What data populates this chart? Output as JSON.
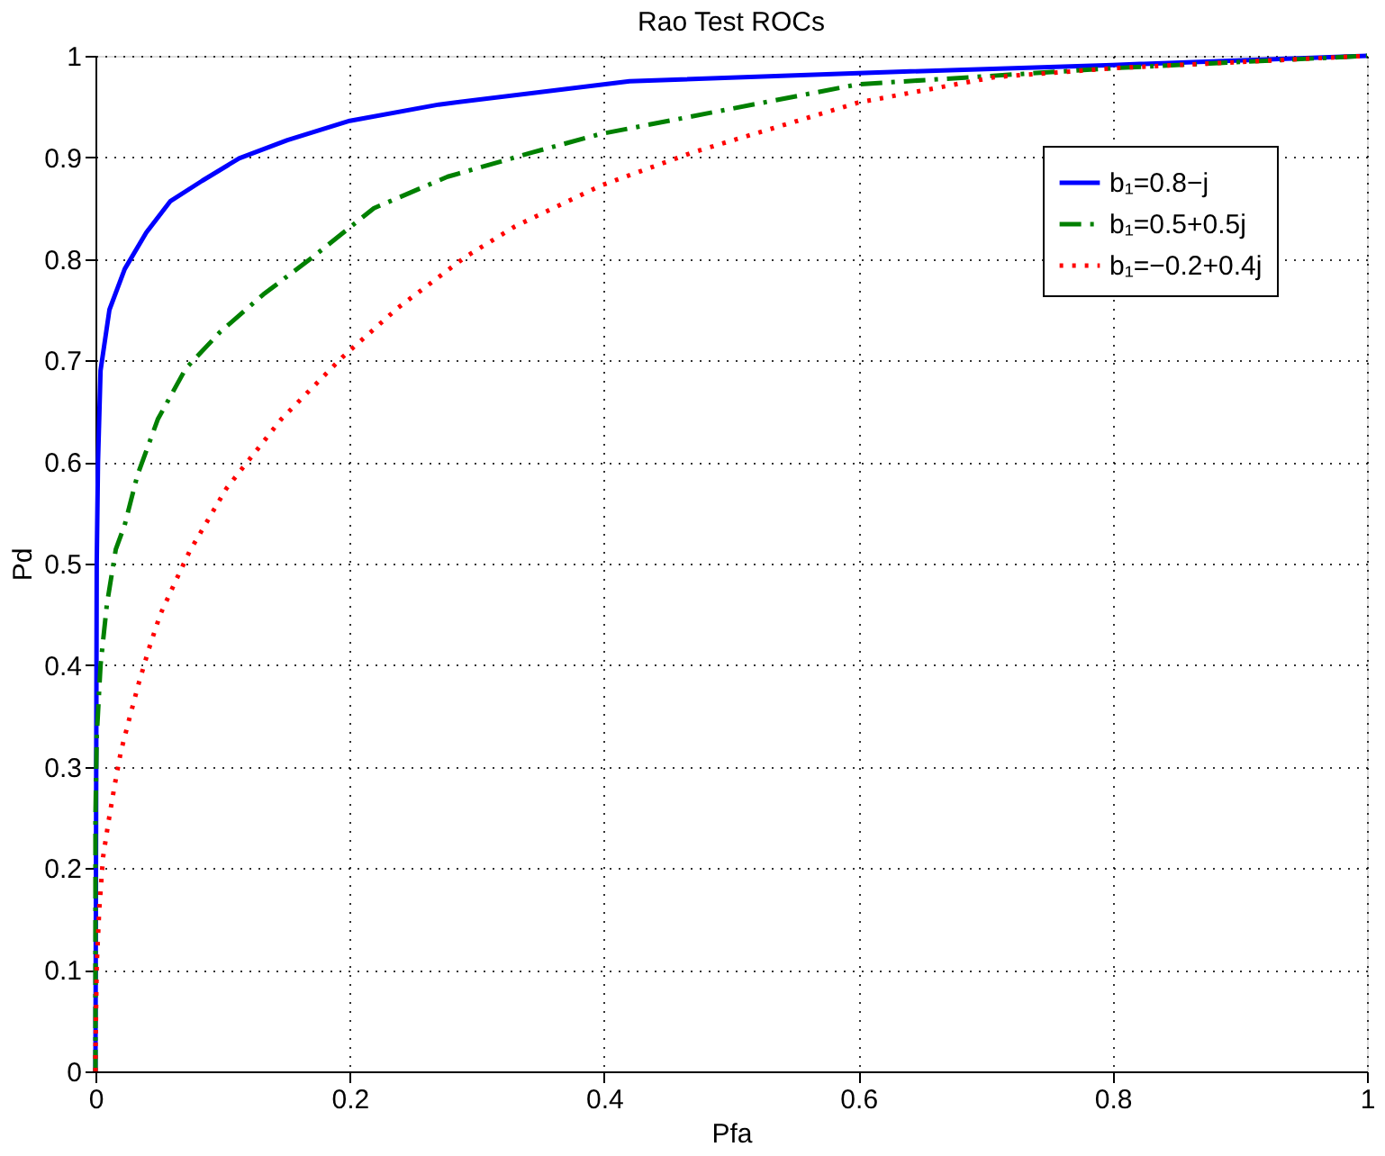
{
  "chart_data": {
    "type": "line",
    "title": "Rao Test ROCs",
    "xlabel": "Pfa",
    "ylabel": "Pd",
    "xlim": [
      0,
      1
    ],
    "ylim": [
      0,
      1
    ],
    "xticks": [
      0,
      0.2,
      0.4,
      0.6,
      0.8,
      1
    ],
    "yticks": [
      0,
      0.1,
      0.2,
      0.3,
      0.4,
      0.5,
      0.6,
      0.7,
      0.8,
      0.9,
      1
    ],
    "grid": true,
    "legend": "top right",
    "marker": "none",
    "series": [
      {
        "name": "b₁=0.8−j",
        "color": "#0000ff",
        "line_style": "solid",
        "x": [
          0,
          0.001,
          0.002,
          0.004,
          0.011,
          0.023,
          0.04,
          0.059,
          0.084,
          0.113,
          0.151,
          0.2,
          0.27,
          0.42,
          0.6,
          0.8,
          1
        ],
        "values": [
          0,
          0.5,
          0.6,
          0.69,
          0.75,
          0.79,
          0.826,
          0.857,
          0.877,
          0.899,
          0.917,
          0.936,
          0.952,
          0.975,
          0.983,
          0.991,
          1
        ]
      },
      {
        "name": "b₁=0.5+0.5j",
        "color": "#008000",
        "line_style": "dashed",
        "x": [
          0,
          0,
          0.001,
          0.004,
          0.009,
          0.016,
          0.023,
          0.033,
          0.049,
          0.071,
          0.098,
          0.132,
          0.171,
          0.219,
          0.277,
          0.344,
          0.397,
          0.6,
          0.803,
          1
        ],
        "values": [
          0,
          0.25,
          0.33,
          0.4,
          0.46,
          0.514,
          0.538,
          0.587,
          0.642,
          0.692,
          0.728,
          0.765,
          0.802,
          0.85,
          0.881,
          0.905,
          0.923,
          0.972,
          0.988,
          1
        ]
      },
      {
        "name": "b₁=−0.2+0.4j",
        "color": "#ff0000",
        "line_style": "dotted",
        "x": [
          0,
          0,
          0.001,
          0.003,
          0.006,
          0.01,
          0.015,
          0.02,
          0.027,
          0.034,
          0.042,
          0.051,
          0.062,
          0.074,
          0.103,
          0.146,
          0.194,
          0.238,
          0.291,
          0.33,
          0.397,
          0.47,
          0.6,
          0.707,
          0.803,
          1
        ],
        "values": [
          0,
          0.018,
          0.105,
          0.16,
          0.211,
          0.244,
          0.281,
          0.315,
          0.349,
          0.382,
          0.416,
          0.45,
          0.48,
          0.512,
          0.574,
          0.642,
          0.703,
          0.752,
          0.802,
          0.832,
          0.872,
          0.905,
          0.954,
          0.979,
          0.988,
          1
        ]
      }
    ]
  }
}
